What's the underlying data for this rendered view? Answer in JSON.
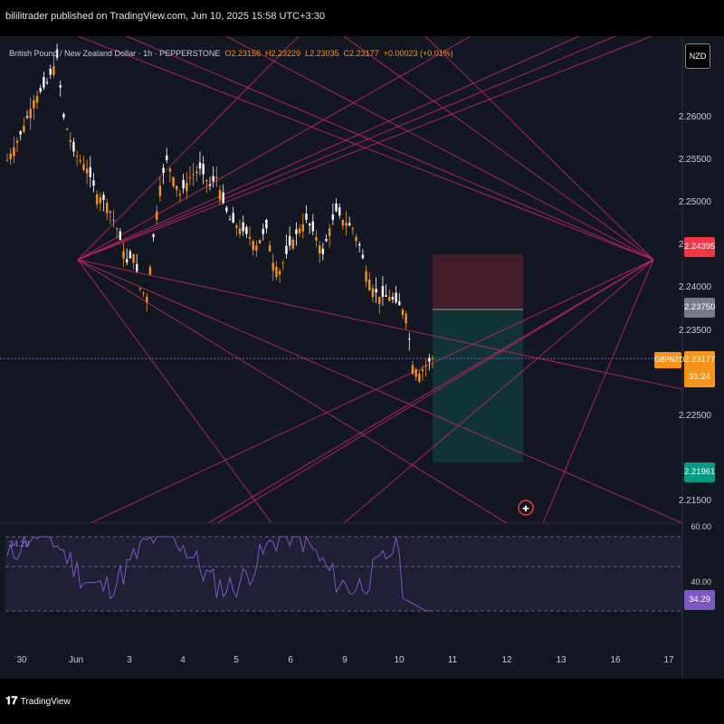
{
  "header": {
    "text": "bililitrader published on TradingView.com, Jun 10, 2025 15:58 UTC+3:30"
  },
  "legend": {
    "symbol": "British Pound / New Zealand Dollar · 1h · PEPPERSTONE",
    "open": "O2.23156",
    "high": "H2.23229",
    "low": "L2.23035",
    "close": "C2.23177",
    "change": "+0.00023 (+0.01%)"
  },
  "currency_button": "NZD",
  "colors": {
    "bull": "#f7931a",
    "bear": "#ffffff",
    "lines": "#b8245f",
    "rsi": "#7e57c2",
    "stop": "#f23645",
    "target": "#089981"
  },
  "chart_data": {
    "type": "candlestick",
    "symbol": "GBPNZD",
    "timeframe": "1h",
    "ylim": [
      2.2125,
      2.2695
    ],
    "y_ticks": [
      "2.26000",
      "2.25500",
      "2.25000",
      "2.24500",
      "2.24000",
      "2.23500",
      "2.22500",
      "2.21500"
    ],
    "x_ticks": [
      "30",
      "Jun",
      "3",
      "4",
      "5",
      "6",
      "9",
      "10",
      "11",
      "12",
      "13",
      "16",
      "17"
    ],
    "close_path": [
      [
        0,
        2.255
      ],
      [
        4,
        2.258
      ],
      [
        8,
        2.262
      ],
      [
        12,
        2.264
      ],
      [
        15,
        2.267
      ],
      [
        17,
        2.26
      ],
      [
        20,
        2.256
      ],
      [
        24,
        2.254
      ],
      [
        27,
        2.251
      ],
      [
        30,
        2.25
      ],
      [
        33,
        2.247
      ],
      [
        36,
        2.243
      ],
      [
        38,
        2.244
      ],
      [
        40,
        2.24
      ],
      [
        42,
        2.239
      ],
      [
        44,
        2.246
      ],
      [
        46,
        2.252
      ],
      [
        48,
        2.255
      ],
      [
        50,
        2.253
      ],
      [
        52,
        2.251
      ],
      [
        55,
        2.253
      ],
      [
        58,
        2.254
      ],
      [
        61,
        2.252
      ],
      [
        63,
        2.253
      ],
      [
        65,
        2.25
      ],
      [
        67,
        2.248
      ],
      [
        70,
        2.247
      ],
      [
        73,
        2.246
      ],
      [
        75,
        2.245
      ],
      [
        78,
        2.247
      ],
      [
        80,
        2.243
      ],
      [
        82,
        2.242
      ],
      [
        85,
        2.245
      ],
      [
        88,
        2.247
      ],
      [
        90,
        2.248
      ],
      [
        93,
        2.246
      ],
      [
        95,
        2.244
      ],
      [
        97,
        2.247
      ],
      [
        99,
        2.249
      ],
      [
        101,
        2.248
      ],
      [
        104,
        2.247
      ],
      [
        106,
        2.245
      ],
      [
        108,
        2.242
      ],
      [
        110,
        2.24
      ],
      [
        112,
        2.239
      ],
      [
        115,
        2.239
      ],
      [
        118,
        2.238
      ],
      [
        120,
        2.237
      ],
      [
        122,
        2.231
      ],
      [
        124,
        2.23
      ],
      [
        126,
        2.231
      ],
      [
        128,
        2.2318
      ]
    ],
    "current_price": "2.23177",
    "countdown": "31:24",
    "price_labels": {
      "stop": "2.24395",
      "entry": "2.23750",
      "target": "2.21961"
    },
    "position_tool": {
      "stop": 2.24395,
      "entry": 2.2375,
      "target": 2.21961,
      "x_start": 2.0,
      "x_end": 2.7
    },
    "rsi": {
      "value": "34.29",
      "top_label": "60.00",
      "bottom_label": "40.00",
      "last": 34.29
    }
  }
}
